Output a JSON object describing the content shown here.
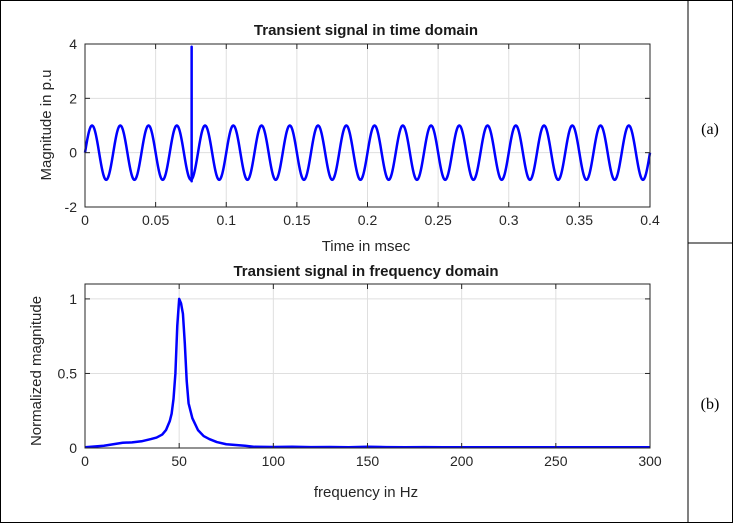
{
  "panels": [
    {
      "label": "(a)",
      "chart_data": {
        "type": "line",
        "title": "Transient signal in time domain",
        "xlabel": "Time in msec",
        "ylabel": "Magnitude in p.u",
        "xlim": [
          0,
          0.4
        ],
        "ylim": [
          -2,
          4
        ],
        "xticks": [
          0,
          0.05,
          0.1,
          0.15,
          0.2,
          0.25,
          0.3,
          0.35,
          0.4
        ],
        "xtick_labels": [
          "0",
          "0.05",
          "0.1",
          "0.15",
          "0.2",
          "0.25",
          "0.3",
          "0.35",
          "0.4"
        ],
        "yticks": [
          -2,
          0,
          2,
          4
        ],
        "ytick_labels": [
          "-2",
          "0",
          "2",
          "4"
        ],
        "grid": true,
        "series": [
          {
            "color": "#0000ff",
            "signal": {
              "form": "sine",
              "amplitude": 1,
              "period": 0.02,
              "start": 0,
              "end": 0.4
            },
            "transient": {
              "x": 0.0755,
              "peak": 3.9,
              "dip": -1.05
            }
          }
        ]
      }
    },
    {
      "label": "(b)",
      "chart_data": {
        "type": "line",
        "title": "Transient signal in frequency domain",
        "xlabel": "frequency in Hz",
        "ylabel": "Normalized magnitude",
        "xlim": [
          0,
          300
        ],
        "ylim": [
          0,
          1.1
        ],
        "xticks": [
          0,
          50,
          100,
          150,
          200,
          250,
          300
        ],
        "xtick_labels": [
          "0",
          "50",
          "100",
          "150",
          "200",
          "250",
          "300"
        ],
        "yticks": [
          0,
          0.5,
          1
        ],
        "ytick_labels": [
          "0",
          "0.5",
          "1"
        ],
        "grid": true,
        "series": [
          {
            "color": "#0000ff",
            "x": [
              0,
              10,
              15,
              20,
              25,
              30,
              35,
              38,
              41,
              43,
              45,
              46,
              47,
              48,
              49,
              50,
              51,
              52,
              53,
              54,
              55,
              57,
              60,
              63,
              66,
              70,
              75,
              80,
              85,
              90,
              100,
              110,
              120,
              130,
              140,
              150,
              160,
              170,
              180,
              190,
              200,
              220,
              240,
              260,
              280,
              300
            ],
            "y": [
              0.005,
              0.015,
              0.025,
              0.035,
              0.038,
              0.045,
              0.06,
              0.07,
              0.09,
              0.12,
              0.18,
              0.23,
              0.33,
              0.5,
              0.82,
              1.0,
              0.97,
              0.9,
              0.7,
              0.45,
              0.3,
              0.2,
              0.12,
              0.08,
              0.06,
              0.04,
              0.025,
              0.02,
              0.015,
              0.008,
              0.007,
              0.008,
              0.006,
              0.007,
              0.005,
              0.008,
              0.006,
              0.005,
              0.006,
              0.005,
              0.005,
              0.005,
              0.005,
              0.005,
              0.005,
              0.005
            ]
          }
        ]
      }
    }
  ]
}
